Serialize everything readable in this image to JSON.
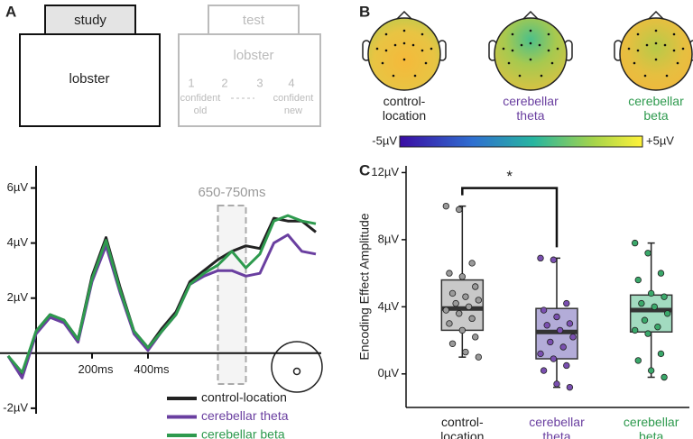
{
  "panel_labels": [
    "A",
    "B",
    "C"
  ],
  "study": {
    "tab": "study",
    "word": "lobster"
  },
  "test": {
    "tab": "test",
    "word": "lobster",
    "scale": [
      "1",
      "2",
      "3",
      "4"
    ],
    "left_anchor": "confident old",
    "right_anchor": "confident new"
  },
  "topomaps": {
    "labels": [
      "control-location",
      "cerebellar theta",
      "cerebellar beta"
    ],
    "colorbar": {
      "min": {
        "value": -5,
        "label": "-5µV"
      },
      "max": {
        "value": 5,
        "label": "+5µV"
      }
    }
  },
  "chart_data": [
    {
      "type": "line",
      "x": [
        -100,
        -50,
        0,
        50,
        100,
        150,
        200,
        250,
        300,
        350,
        400,
        450,
        500,
        550,
        600,
        650,
        700,
        750,
        800,
        850,
        900,
        950,
        1000
      ],
      "xlim": [
        -100,
        1000
      ],
      "xticks": [
        {
          "value": 200,
          "label": "200ms"
        },
        {
          "value": 400,
          "label": "400ms"
        }
      ],
      "ylim": [
        -2.2,
        7
      ],
      "yticks": [
        {
          "value": -2,
          "label": "-2µV"
        },
        {
          "value": 2,
          "label": "2µV"
        },
        {
          "value": 4,
          "label": "4µV"
        },
        {
          "value": 6,
          "label": "6µV"
        }
      ],
      "window_label": "650-750ms",
      "window": [
        650,
        750
      ],
      "series": [
        {
          "name": "control-location",
          "color": "#222222",
          "values": [
            -0.1,
            -0.8,
            0.8,
            1.4,
            1.2,
            0.5,
            2.8,
            4.2,
            2.4,
            0.8,
            0.2,
            0.9,
            1.5,
            2.6,
            3.0,
            3.4,
            3.7,
            3.9,
            3.8,
            4.9,
            4.8,
            4.8,
            4.4
          ]
        },
        {
          "name": "cerebellar theta",
          "color": "#6a3fa0",
          "values": [
            -0.1,
            -0.9,
            0.7,
            1.3,
            1.1,
            0.4,
            2.6,
            3.9,
            2.2,
            0.7,
            0.1,
            0.8,
            1.4,
            2.5,
            2.8,
            3.0,
            3.0,
            2.8,
            2.9,
            4.0,
            4.3,
            3.7,
            3.6
          ]
        },
        {
          "name": "cerebellar beta",
          "color": "#2e9a4e",
          "values": [
            -0.1,
            -0.7,
            0.8,
            1.4,
            1.2,
            0.5,
            2.7,
            4.1,
            2.3,
            0.8,
            0.2,
            0.8,
            1.4,
            2.5,
            2.9,
            3.2,
            3.7,
            3.1,
            3.6,
            4.8,
            5.0,
            4.8,
            4.7
          ]
        }
      ]
    },
    {
      "type": "box",
      "ylabel": "Encoding Effect Amplitude",
      "annotation": "*",
      "categories": [
        "control-location",
        "cerebellar theta",
        "cerebellar beta"
      ],
      "colors": [
        "#c9c9c9",
        "#b3acd8",
        "#a2dbc0"
      ],
      "point_colors": [
        "#9a9a9a",
        "#7a4fb0",
        "#3aa86a"
      ],
      "label_colors": [
        "#222222",
        "#6a3fa0",
        "#2e9a4e"
      ],
      "ylim": [
        -2,
        12.4
      ],
      "yticks": [
        {
          "value": 0,
          "label": "0µV"
        },
        {
          "value": 4,
          "label": "4µV"
        },
        {
          "value": 8,
          "label": "8µV"
        },
        {
          "value": 12,
          "label": "12µV"
        }
      ],
      "boxes": [
        {
          "whisker_low": 1.0,
          "q1": 2.6,
          "median": 3.9,
          "q3": 5.6,
          "whisker_high": 10.0,
          "points": [
            10.0,
            9.8,
            6.6,
            6.0,
            5.8,
            5.2,
            4.8,
            4.6,
            4.4,
            4.2,
            4.0,
            3.8,
            3.6,
            3.3,
            3.0,
            2.6,
            2.2,
            1.8,
            1.3,
            1.0
          ]
        },
        {
          "whisker_low": -0.8,
          "q1": 0.9,
          "median": 2.5,
          "q3": 3.9,
          "whisker_high": 6.9,
          "points": [
            6.9,
            6.8,
            4.2,
            3.8,
            3.4,
            3.0,
            2.9,
            2.6,
            2.2,
            1.9,
            1.6,
            1.2,
            0.9,
            0.5,
            0.2,
            -0.6,
            -0.8
          ]
        },
        {
          "whisker_low": -0.2,
          "q1": 2.5,
          "median": 3.8,
          "q3": 4.7,
          "whisker_high": 7.8,
          "points": [
            7.8,
            7.2,
            6.0,
            5.6,
            4.8,
            4.6,
            4.2,
            4.0,
            3.6,
            3.2,
            2.8,
            2.6,
            2.4,
            1.2,
            0.8,
            0.2,
            -0.2
          ]
        }
      ]
    }
  ]
}
